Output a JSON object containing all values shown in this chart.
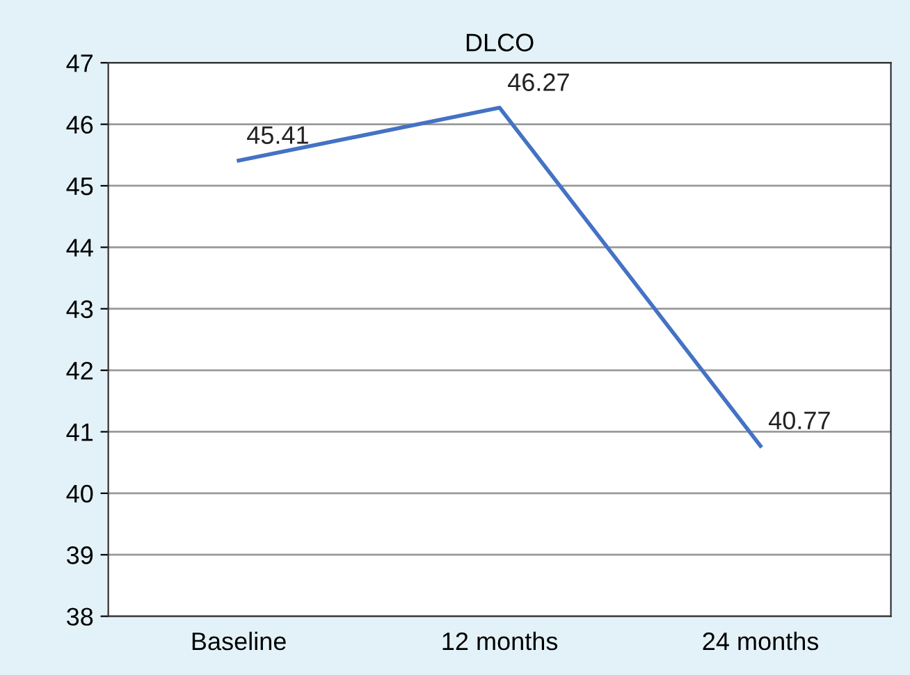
{
  "chart_data": {
    "type": "line",
    "title": "DLCO",
    "categories": [
      "Baseline",
      "12 months",
      "24 months"
    ],
    "series": [
      {
        "color": "#4472c4",
        "values": [
          45.41,
          46.27,
          40.77
        ]
      }
    ],
    "ylim": [
      38,
      47
    ],
    "yticks": [
      38,
      39,
      40,
      41,
      42,
      43,
      44,
      45,
      46,
      47
    ],
    "grid": "y",
    "marker": "none",
    "line_style": "solid",
    "data_labels": true
  }
}
